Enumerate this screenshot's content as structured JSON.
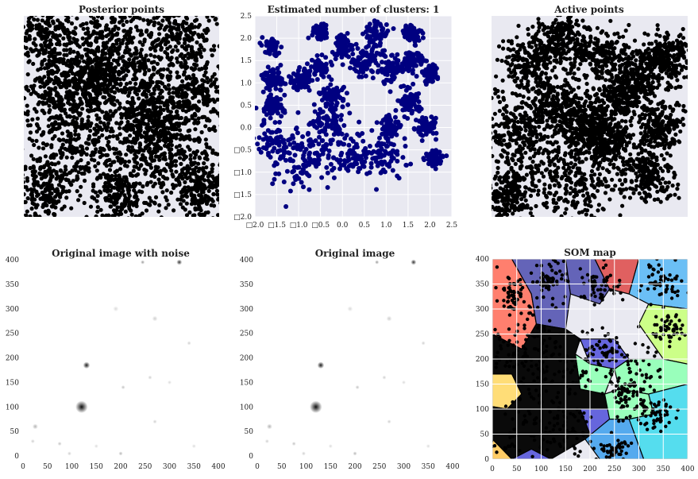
{
  "colors": {
    "panel_bg": "#e9e9f1",
    "grid": "#ffffff",
    "points_black": "#000000",
    "points_navy": "#000080"
  },
  "chart_data": [
    {
      "id": "posterior",
      "type": "scatter",
      "title": "Posterior points",
      "grid": false,
      "axes_visible": false,
      "series": [
        {
          "color": "#000000",
          "description": "dense field of black points covering the whole panel",
          "blobs": [
            [
              0.1,
              0.1,
              0.16
            ],
            [
              0.45,
              0.12,
              0.18
            ],
            [
              0.8,
              0.1,
              0.16
            ],
            [
              0.15,
              0.4,
              0.17
            ],
            [
              0.55,
              0.35,
              0.2
            ],
            [
              0.88,
              0.4,
              0.15
            ],
            [
              0.3,
              0.62,
              0.18
            ],
            [
              0.7,
              0.65,
              0.18
            ],
            [
              0.1,
              0.85,
              0.15
            ],
            [
              0.5,
              0.88,
              0.17
            ],
            [
              0.9,
              0.85,
              0.15
            ],
            [
              0.35,
              0.3,
              0.12
            ],
            [
              0.65,
              0.5,
              0.14
            ]
          ]
        }
      ]
    },
    {
      "id": "clusters",
      "type": "scatter",
      "title": "Estimated number of clusters: 1",
      "grid": true,
      "xlim": [
        -2.0,
        2.5
      ],
      "ylim": [
        -2.0,
        2.5
      ],
      "x_ticks": [
        -2.0,
        -1.5,
        -1.0,
        -0.5,
        0.0,
        0.5,
        1.0,
        1.5,
        2.0,
        2.5
      ],
      "y_ticks": [
        -2.0,
        -1.5,
        -1.0,
        -0.5,
        0.0,
        0.5,
        1.0,
        1.5,
        2.0,
        2.5
      ],
      "x_tick_labels": [
        "□2.0",
        "□1.5",
        "□1.0",
        "□0.5",
        "0.0",
        "0.5",
        "1.0",
        "1.5",
        "2.0",
        "2.5"
      ],
      "y_tick_labels": [
        "□2.0",
        "□1.5",
        "□1.0",
        "□0.5",
        "0.0",
        "0.5",
        "1.0",
        "1.5",
        "2.0",
        "2.5"
      ],
      "series": [
        {
          "color": "#000080",
          "blobs": [
            [
              -1.0,
              -0.75,
              0.55
            ],
            [
              -0.5,
              -0.5,
              0.6
            ],
            [
              -0.3,
              0.1,
              0.35
            ],
            [
              0.3,
              -0.6,
              0.35
            ],
            [
              1.0,
              -0.6,
              0.4
            ],
            [
              -1.55,
              -0.3,
              0.35
            ],
            [
              -1.6,
              0.5,
              0.22
            ],
            [
              -1.55,
              1.1,
              0.2
            ],
            [
              -0.9,
              1.1,
              0.2
            ],
            [
              -0.5,
              1.35,
              0.2
            ],
            [
              -0.2,
              0.7,
              0.25
            ],
            [
              0.0,
              1.8,
              0.22
            ],
            [
              -0.5,
              2.15,
              0.15
            ],
            [
              0.8,
              2.1,
              0.25
            ],
            [
              0.5,
              1.4,
              0.3
            ],
            [
              1.1,
              1.35,
              0.25
            ],
            [
              1.6,
              2.1,
              0.18
            ],
            [
              1.6,
              1.5,
              0.2
            ],
            [
              2.0,
              1.2,
              0.15
            ],
            [
              1.5,
              0.6,
              0.25
            ],
            [
              1.1,
              0.0,
              0.2
            ],
            [
              1.9,
              0.0,
              0.2
            ],
            [
              2.1,
              -0.7,
              0.15
            ],
            [
              -1.6,
              1.8,
              0.15
            ]
          ]
        }
      ]
    },
    {
      "id": "active",
      "type": "scatter",
      "title": "Active points",
      "grid": false,
      "axes_visible": false,
      "series": [
        {
          "color": "#000000",
          "blobs": [
            [
              0.25,
              0.72,
              0.25
            ],
            [
              0.15,
              0.55,
              0.15
            ],
            [
              0.45,
              0.8,
              0.18
            ],
            [
              0.35,
              0.45,
              0.12
            ],
            [
              0.2,
              0.25,
              0.12
            ],
            [
              0.35,
              0.12,
              0.12
            ],
            [
              0.55,
              0.2,
              0.12
            ],
            [
              0.65,
              0.4,
              0.1
            ],
            [
              0.75,
              0.3,
              0.12
            ],
            [
              0.85,
              0.55,
              0.1
            ],
            [
              0.8,
              0.78,
              0.12
            ],
            [
              0.6,
              0.62,
              0.1
            ],
            [
              0.9,
              0.2,
              0.1
            ],
            [
              0.08,
              0.9,
              0.1
            ],
            [
              0.5,
              0.55,
              0.1
            ]
          ]
        }
      ]
    },
    {
      "id": "noisy",
      "type": "heatmap",
      "title": "Original image with noise",
      "xlim": [
        0,
        400
      ],
      "ylim": [
        0,
        400
      ],
      "x_ticks": [
        0,
        50,
        100,
        150,
        200,
        250,
        300,
        350,
        400
      ],
      "y_ticks": [
        0,
        50,
        100,
        150,
        200,
        250,
        300,
        350,
        400
      ],
      "spots": [
        [
          120,
          100,
          9,
          0.95
        ],
        [
          130,
          185,
          5,
          0.9
        ],
        [
          320,
          395,
          4,
          0.8
        ],
        [
          245,
          395,
          3,
          0.4
        ],
        [
          25,
          60,
          4,
          0.3
        ],
        [
          75,
          25,
          3,
          0.25
        ],
        [
          205,
          140,
          3,
          0.25
        ],
        [
          270,
          280,
          4,
          0.2
        ],
        [
          340,
          230,
          3,
          0.2
        ],
        [
          270,
          70,
          3,
          0.2
        ],
        [
          200,
          5,
          3,
          0.3
        ],
        [
          350,
          20,
          3,
          0.15
        ],
        [
          20,
          30,
          3,
          0.2
        ],
        [
          190,
          300,
          4,
          0.15
        ],
        [
          300,
          150,
          3,
          0.15
        ],
        [
          260,
          160,
          3,
          0.2
        ],
        [
          95,
          5,
          3,
          0.2
        ],
        [
          150,
          20,
          3,
          0.15
        ]
      ]
    },
    {
      "id": "original",
      "type": "heatmap",
      "title": "Original image",
      "xlim": [
        0,
        400
      ],
      "ylim": [
        0,
        400
      ],
      "x_ticks": [
        0,
        50,
        100,
        150,
        200,
        250,
        300,
        350,
        400
      ],
      "y_ticks": [
        0,
        50,
        100,
        150,
        200,
        250,
        300,
        350,
        400
      ],
      "spots": [
        [
          120,
          100,
          9,
          0.95
        ],
        [
          130,
          185,
          5,
          0.9
        ],
        [
          320,
          395,
          4,
          0.8
        ],
        [
          245,
          395,
          3,
          0.4
        ],
        [
          25,
          60,
          4,
          0.3
        ],
        [
          75,
          25,
          3,
          0.25
        ],
        [
          205,
          140,
          3,
          0.25
        ],
        [
          270,
          280,
          4,
          0.2
        ],
        [
          340,
          230,
          3,
          0.2
        ],
        [
          270,
          70,
          3,
          0.2
        ],
        [
          200,
          5,
          3,
          0.3
        ],
        [
          350,
          20,
          3,
          0.15
        ],
        [
          20,
          30,
          3,
          0.2
        ],
        [
          190,
          300,
          4,
          0.15
        ],
        [
          300,
          150,
          3,
          0.15
        ],
        [
          260,
          160,
          3,
          0.2
        ],
        [
          95,
          5,
          3,
          0.2
        ],
        [
          150,
          20,
          3,
          0.15
        ]
      ]
    },
    {
      "id": "som",
      "type": "scatter",
      "title": "SOM map",
      "grid": true,
      "xlim": [
        0,
        400
      ],
      "ylim": [
        0,
        400
      ],
      "x_ticks": [
        0,
        50,
        100,
        150,
        200,
        250,
        300,
        350,
        400
      ],
      "y_ticks": [
        0,
        50,
        100,
        150,
        200,
        250,
        300,
        350,
        400
      ],
      "regions": [
        {
          "color": "#ff7f6e",
          "points": [
            [
              0,
              400
            ],
            [
              0,
              250
            ],
            [
              60,
              220
            ],
            [
              90,
              270
            ],
            [
              80,
              330
            ],
            [
              40,
              400
            ]
          ]
        },
        {
          "color": "#6464b8",
          "points": [
            [
              40,
              400
            ],
            [
              80,
              330
            ],
            [
              90,
              270
            ],
            [
              150,
              260
            ],
            [
              160,
              330
            ],
            [
              150,
              400
            ]
          ]
        },
        {
          "color": "#6464b8",
          "points": [
            [
              150,
              400
            ],
            [
              160,
              330
            ],
            [
              220,
              310
            ],
            [
              240,
              340
            ],
            [
              210,
              400
            ]
          ]
        },
        {
          "color": "#e06060",
          "points": [
            [
              210,
              400
            ],
            [
              240,
              340
            ],
            [
              280,
              330
            ],
            [
              300,
              400
            ]
          ]
        },
        {
          "color": "#6bbff5",
          "points": [
            [
              300,
              400
            ],
            [
              280,
              330
            ],
            [
              320,
              310
            ],
            [
              400,
              300
            ],
            [
              400,
              400
            ]
          ]
        },
        {
          "color": "#ccff88",
          "points": [
            [
              320,
              310
            ],
            [
              400,
              300
            ],
            [
              400,
              190
            ],
            [
              350,
              200
            ],
            [
              300,
              270
            ]
          ]
        },
        {
          "color": "#6666dd",
          "points": [
            [
              180,
              240
            ],
            [
              250,
              240
            ],
            [
              280,
              200
            ],
            [
              250,
              180
            ],
            [
              200,
              190
            ]
          ]
        },
        {
          "color": "#99ffbb",
          "points": [
            [
              250,
              180
            ],
            [
              280,
              200
            ],
            [
              350,
              200
            ],
            [
              400,
              190
            ],
            [
              400,
              150
            ],
            [
              320,
              130
            ],
            [
              260,
              140
            ]
          ]
        },
        {
          "color": "#99ffbb",
          "points": [
            [
              170,
              210
            ],
            [
              200,
              190
            ],
            [
              250,
              180
            ],
            [
              230,
              130
            ],
            [
              180,
              140
            ]
          ]
        },
        {
          "color": "#ffdd77",
          "points": [
            [
              0,
              170
            ],
            [
              40,
              170
            ],
            [
              60,
              130
            ],
            [
              30,
              100
            ],
            [
              0,
              105
            ]
          ]
        },
        {
          "color": "#0a0a0a",
          "points": [
            [
              0,
              250
            ],
            [
              60,
              220
            ],
            [
              90,
              270
            ],
            [
              150,
              260
            ],
            [
              180,
              240
            ],
            [
              170,
              210
            ],
            [
              180,
              140
            ],
            [
              230,
              130
            ],
            [
              240,
              80
            ],
            [
              190,
              40
            ],
            [
              120,
              0
            ],
            [
              40,
              0
            ],
            [
              0,
              40
            ],
            [
              0,
              105
            ],
            [
              30,
              100
            ],
            [
              60,
              130
            ],
            [
              40,
              170
            ],
            [
              0,
              170
            ]
          ]
        },
        {
          "color": "#6666dd",
          "points": [
            [
              180,
              100
            ],
            [
              240,
              100
            ],
            [
              250,
              60
            ],
            [
              200,
              50
            ]
          ]
        },
        {
          "color": "#99ffbb",
          "points": [
            [
              230,
              130
            ],
            [
              260,
              140
            ],
            [
              320,
              130
            ],
            [
              330,
              90
            ],
            [
              280,
              80
            ],
            [
              240,
              80
            ]
          ]
        },
        {
          "color": "#55ddee",
          "points": [
            [
              330,
              90
            ],
            [
              320,
              130
            ],
            [
              400,
              150
            ],
            [
              400,
              0
            ],
            [
              310,
              0
            ],
            [
              280,
              80
            ]
          ]
        },
        {
          "color": "#55aaee",
          "points": [
            [
              190,
              40
            ],
            [
              240,
              80
            ],
            [
              280,
              80
            ],
            [
              310,
              0
            ],
            [
              220,
              0
            ]
          ]
        },
        {
          "color": "#6666dd",
          "points": [
            [
              40,
              0
            ],
            [
              120,
              0
            ],
            [
              80,
              20
            ]
          ]
        },
        {
          "color": "#ffcc66",
          "points": [
            [
              0,
              0
            ],
            [
              40,
              0
            ],
            [
              0,
              40
            ]
          ]
        }
      ],
      "region_edges_color": "#000000",
      "series": [
        {
          "color": "#000000",
          "blobs": [
            [
              100,
              250,
              70
            ],
            [
              60,
              200,
              60
            ],
            [
              150,
              150,
              60
            ],
            [
              60,
              60,
              55
            ],
            [
              150,
              60,
              45
            ],
            [
              220,
              220,
              40
            ],
            [
              300,
              180,
              45
            ],
            [
              330,
              90,
              30
            ],
            [
              350,
              350,
              35
            ],
            [
              220,
              350,
              35
            ],
            [
              120,
              360,
              30
            ],
            [
              40,
              330,
              25
            ],
            [
              360,
              260,
              25
            ],
            [
              270,
              120,
              30
            ],
            [
              250,
              20,
              25
            ]
          ]
        }
      ]
    }
  ]
}
